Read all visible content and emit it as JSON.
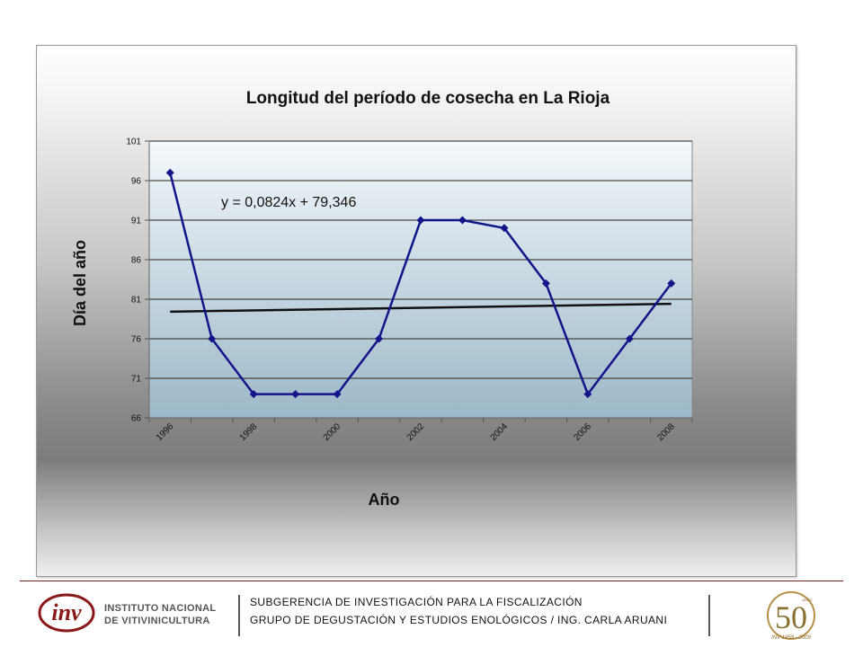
{
  "chart_data": {
    "type": "line",
    "title": "Longitud del período de cosecha en La Rioja",
    "xlabel": "Año",
    "ylabel": "Día del año",
    "x": [
      1996,
      1997,
      1998,
      1999,
      2000,
      2001,
      2002,
      2003,
      2004,
      2005,
      2006,
      2007,
      2008
    ],
    "x_tick_labels": [
      "1996",
      "1998",
      "2000",
      "2002",
      "2004",
      "2006",
      "2008"
    ],
    "y_ticks": [
      "66",
      "71",
      "76",
      "81",
      "86",
      "91",
      "96",
      "101"
    ],
    "ylim": [
      66,
      101
    ],
    "series": [
      {
        "values": [
          97,
          76,
          69,
          69,
          69,
          76,
          91,
          91,
          90,
          83,
          69,
          76,
          83
        ],
        "color": "#14148a"
      }
    ],
    "trendline": {
      "equation": "y = 0,0824x + 79,346",
      "slope": 0.0824,
      "intercept": 79.346,
      "color": "#111111"
    },
    "grid": true,
    "legend": "none"
  },
  "footer": {
    "line1": "SUBGERENCIA DE INVESTIGACIÓN PARA LA FISCALIZACIÓN",
    "line2": "GRUPO DE DEGUSTACIÓN Y ESTUDIOS ENOLÓGICOS / ING. CARLA ARUANI",
    "logo_text_1": "INSTITUTO NACIONAL",
    "logo_text_2": "DE VITIVINICULTURA",
    "logo_mark": "inv",
    "anniversary_number": "50",
    "anniversary_small": "AÑOS",
    "anniversary_years": "INV 1959 - 2009",
    "brand_color": "#8a1a1a"
  }
}
